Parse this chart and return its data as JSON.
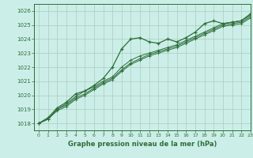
{
  "title": "Graphe pression niveau de la mer (hPa)",
  "bg_color": "#cceee8",
  "grid_color": "#aaccbb",
  "line_color": "#2d6e3a",
  "xlim": [
    -0.5,
    23
  ],
  "ylim": [
    1017.5,
    1026.5
  ],
  "yticks": [
    1018,
    1019,
    1020,
    1021,
    1022,
    1023,
    1024,
    1025,
    1026
  ],
  "xticks": [
    0,
    1,
    2,
    3,
    4,
    5,
    6,
    7,
    8,
    9,
    10,
    11,
    12,
    13,
    14,
    15,
    16,
    17,
    18,
    19,
    20,
    21,
    22,
    23
  ],
  "series": [
    [
      1018.0,
      1018.4,
      1019.1,
      1019.5,
      1020.1,
      1020.3,
      1020.7,
      1021.2,
      1022.0,
      1023.3,
      1024.0,
      1024.1,
      1023.8,
      1023.7,
      1024.0,
      1023.8,
      1024.1,
      1024.5,
      1025.1,
      1025.3,
      1025.1,
      1025.2,
      1025.3,
      1025.8
    ],
    [
      1018.0,
      1018.3,
      1019.0,
      1019.4,
      1019.9,
      1020.3,
      1020.6,
      1021.0,
      1021.3,
      1022.0,
      1022.5,
      1022.8,
      1023.0,
      1023.2,
      1023.4,
      1023.6,
      1023.9,
      1024.2,
      1024.5,
      1024.8,
      1025.1,
      1025.2,
      1025.3,
      1025.7
    ],
    [
      1018.0,
      1018.3,
      1019.0,
      1019.3,
      1019.8,
      1020.1,
      1020.5,
      1020.9,
      1021.2,
      1021.8,
      1022.3,
      1022.6,
      1022.9,
      1023.1,
      1023.3,
      1023.5,
      1023.8,
      1024.1,
      1024.4,
      1024.7,
      1025.0,
      1025.1,
      1025.2,
      1025.6
    ],
    [
      1018.0,
      1018.3,
      1018.9,
      1019.2,
      1019.7,
      1020.0,
      1020.4,
      1020.8,
      1021.1,
      1021.7,
      1022.2,
      1022.5,
      1022.8,
      1023.0,
      1023.2,
      1023.4,
      1023.7,
      1024.0,
      1024.3,
      1024.6,
      1024.9,
      1025.0,
      1025.1,
      1025.5
    ]
  ]
}
